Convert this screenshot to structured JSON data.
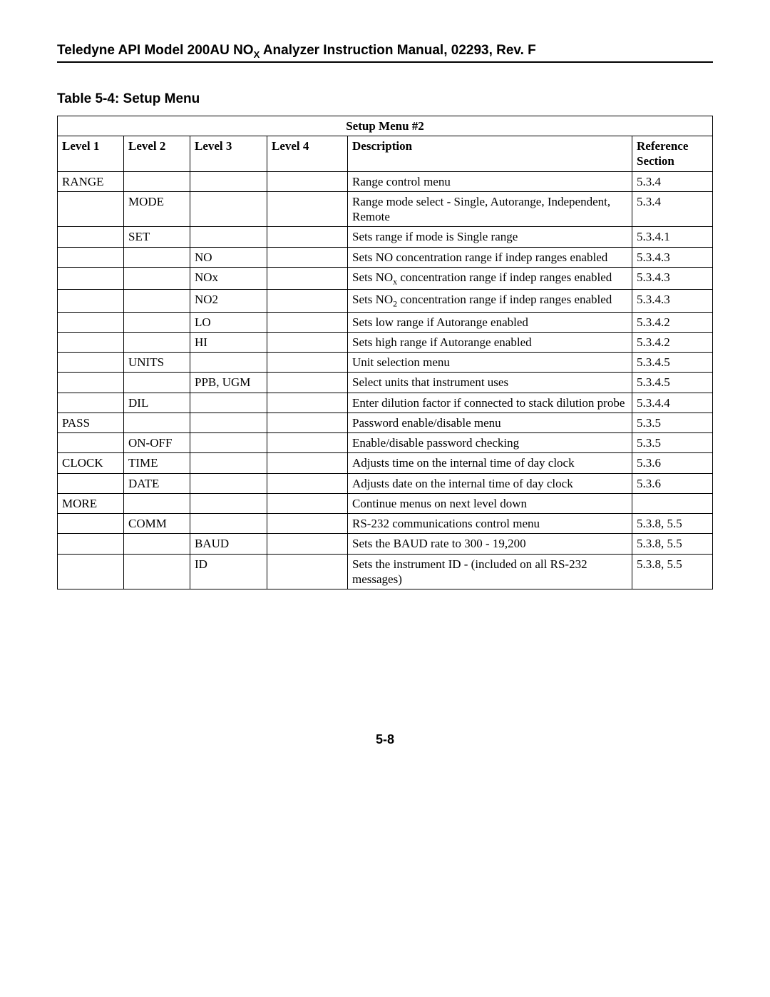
{
  "header": {
    "text_before_sub": "Teledyne API Model 200AU NO",
    "sub": "X",
    "text_after_sub": " Analyzer Instruction Manual, 02293, Rev. F"
  },
  "caption": "Table 5-4:  Setup Menu",
  "table": {
    "title": "Setup Menu #2",
    "columns": [
      "Level 1",
      "Level 2",
      "Level 3",
      "Level 4",
      "Description",
      "Reference Section"
    ],
    "rows": [
      {
        "l1": "RANGE",
        "l2": "",
        "l3": "",
        "l4": "",
        "desc": "Range control menu",
        "ref": "5.3.4"
      },
      {
        "l1": "",
        "l2": "MODE",
        "l3": "",
        "l4": "",
        "desc": "Range mode select - Single, Autorange, Independent, Remote",
        "ref": "5.3.4"
      },
      {
        "l1": "",
        "l2": "SET",
        "l3": "",
        "l4": "",
        "desc": "Sets range if mode is Single range",
        "ref": "5.3.4.1"
      },
      {
        "l1": "",
        "l2": "",
        "l3": "NO",
        "l4": "",
        "desc": "Sets NO concentration range if indep ranges enabled",
        "ref": "5.3.4.3"
      },
      {
        "l1": "",
        "l2": "",
        "l3": "NOx",
        "l4": "",
        "desc_html": "Sets NO<sub class=\"chem\">x</sub> concentration range if indep ranges enabled",
        "ref": "5.3.4.3"
      },
      {
        "l1": "",
        "l2": "",
        "l3": "NO2",
        "l4": "",
        "desc_html": "Sets NO<sub class=\"chem\">2</sub> concentration range if indep ranges enabled",
        "ref": "5.3.4.3"
      },
      {
        "l1": "",
        "l2": "",
        "l3": "LO",
        "l4": "",
        "desc": "Sets low range if Autorange enabled",
        "ref": "5.3.4.2"
      },
      {
        "l1": "",
        "l2": "",
        "l3": "HI",
        "l4": "",
        "desc": "Sets high range if Autorange enabled",
        "ref": "5.3.4.2"
      },
      {
        "l1": "",
        "l2": "UNITS",
        "l3": "",
        "l4": "",
        "desc": "Unit selection menu",
        "ref": "5.3.4.5"
      },
      {
        "l1": "",
        "l2": "",
        "l3": "PPB, UGM",
        "l4": "",
        "desc": "Select units that instrument uses",
        "ref": "5.3.4.5"
      },
      {
        "l1": "",
        "l2": "DIL",
        "l3": "",
        "l4": "",
        "desc": "Enter dilution factor if connected to stack dilution probe",
        "ref": "5.3.4.4"
      },
      {
        "l1": "PASS",
        "l2": "",
        "l3": "",
        "l4": "",
        "desc": "Password enable/disable menu",
        "ref": "5.3.5"
      },
      {
        "l1": "",
        "l2": "ON-OFF",
        "l3": "",
        "l4": "",
        "desc": "Enable/disable password checking",
        "ref": "5.3.5"
      },
      {
        "l1": "CLOCK",
        "l2": "TIME",
        "l3": "",
        "l4": "",
        "desc": "Adjusts time on the internal time of day clock",
        "ref": "5.3.6"
      },
      {
        "l1": "",
        "l2": "DATE",
        "l3": "",
        "l4": "",
        "desc": "Adjusts date on the internal time of day clock",
        "ref": "5.3.6"
      },
      {
        "l1": "MORE",
        "l2": "",
        "l3": "",
        "l4": "",
        "desc": "Continue menus on next level down",
        "ref": ""
      },
      {
        "l1": "",
        "l2": "COMM",
        "l3": "",
        "l4": "",
        "desc": "RS-232 communications control menu",
        "ref": "5.3.8, 5.5"
      },
      {
        "l1": "",
        "l2": "",
        "l3": "BAUD",
        "l4": "",
        "desc": "Sets the BAUD rate to 300 - 19,200",
        "ref": "5.3.8, 5.5"
      },
      {
        "l1": "",
        "l2": "",
        "l3": "ID",
        "l4": "",
        "desc": "Sets the instrument ID - (included on all RS-232 messages)",
        "ref": "5.3.8, 5.5"
      }
    ]
  },
  "page_number": "5-8"
}
